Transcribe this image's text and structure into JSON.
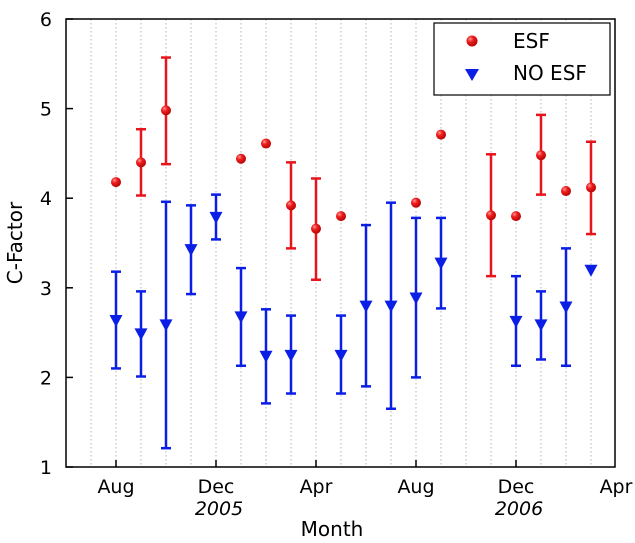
{
  "chart_data": {
    "type": "scatter",
    "title": "",
    "xlabel": "Month",
    "ylabel": "C-Factor",
    "ylim": [
      1,
      6
    ],
    "yticks": [
      "1",
      "2",
      "3",
      "4",
      "5",
      "6"
    ],
    "xlim": [
      "2005-06",
      "2007-04"
    ],
    "xticks": [
      {
        "label": "Aug",
        "month": "2005-08"
      },
      {
        "label": "Dec",
        "month": "2005-12"
      },
      {
        "label": "Apr",
        "month": "2006-04"
      },
      {
        "label": "Aug",
        "month": "2006-08"
      },
      {
        "label": "Dec",
        "month": "2006-12"
      },
      {
        "label": "Apr",
        "month": "2007-04"
      }
    ],
    "year_labels": [
      {
        "label": "2005",
        "month": "2005-12"
      },
      {
        "label": "2006",
        "month": "2006-12"
      }
    ],
    "grid": "vertical dotted, one per month",
    "legend_position": "top-right",
    "series": [
      {
        "name": "ESF",
        "marker": "circle",
        "color": "#e8141c",
        "points": [
          {
            "month": "2005-08",
            "y": 4.18
          },
          {
            "month": "2005-09",
            "y": 4.4,
            "low": 4.03,
            "high": 4.77
          },
          {
            "month": "2005-10",
            "y": 4.98,
            "low": 4.38,
            "high": 5.57
          },
          {
            "month": "2006-01",
            "y": 4.44
          },
          {
            "month": "2006-02",
            "y": 4.61
          },
          {
            "month": "2006-03",
            "y": 3.92,
            "low": 3.44,
            "high": 4.4
          },
          {
            "month": "2006-04",
            "y": 3.66,
            "low": 3.09,
            "high": 4.22
          },
          {
            "month": "2006-05",
            "y": 3.8
          },
          {
            "month": "2006-08",
            "y": 3.95
          },
          {
            "month": "2006-09",
            "y": 4.71
          },
          {
            "month": "2006-11",
            "y": 3.81,
            "low": 3.13,
            "high": 4.49
          },
          {
            "month": "2006-12",
            "y": 3.8
          },
          {
            "month": "2007-01",
            "y": 4.48,
            "low": 4.04,
            "high": 4.93
          },
          {
            "month": "2007-02",
            "y": 4.08
          },
          {
            "month": "2007-03",
            "y": 4.12,
            "low": 3.6,
            "high": 4.63
          }
        ]
      },
      {
        "name": "NO ESF",
        "marker": "triangle-down",
        "color": "#0a1ee6",
        "points": [
          {
            "month": "2005-08",
            "y": 2.63,
            "low": 2.1,
            "high": 3.18
          },
          {
            "month": "2005-09",
            "y": 2.48,
            "low": 2.01,
            "high": 2.96
          },
          {
            "month": "2005-10",
            "y": 2.58,
            "low": 1.21,
            "high": 3.96
          },
          {
            "month": "2005-11",
            "y": 3.42,
            "low": 2.93,
            "high": 3.92
          },
          {
            "month": "2005-12",
            "y": 3.78,
            "low": 3.54,
            "high": 4.04
          },
          {
            "month": "2006-01",
            "y": 2.67,
            "low": 2.13,
            "high": 3.22
          },
          {
            "month": "2006-02",
            "y": 2.23,
            "low": 1.71,
            "high": 2.76
          },
          {
            "month": "2006-03",
            "y": 2.24,
            "low": 1.82,
            "high": 2.69
          },
          {
            "month": "2006-05",
            "y": 2.24,
            "low": 1.82,
            "high": 2.69
          },
          {
            "month": "2006-06",
            "y": 2.79,
            "low": 1.9,
            "high": 3.7
          },
          {
            "month": "2006-07",
            "y": 2.79,
            "low": 1.65,
            "high": 3.95
          },
          {
            "month": "2006-08",
            "y": 2.88,
            "low": 2.0,
            "high": 3.78
          },
          {
            "month": "2006-09",
            "y": 3.27,
            "low": 2.77,
            "high": 3.78
          },
          {
            "month": "2006-12",
            "y": 2.62,
            "low": 2.13,
            "high": 3.13
          },
          {
            "month": "2007-01",
            "y": 2.58,
            "low": 2.2,
            "high": 2.96
          },
          {
            "month": "2007-02",
            "y": 2.78,
            "low": 2.13,
            "high": 3.44
          },
          {
            "month": "2007-03",
            "y": 3.19
          }
        ]
      }
    ]
  }
}
